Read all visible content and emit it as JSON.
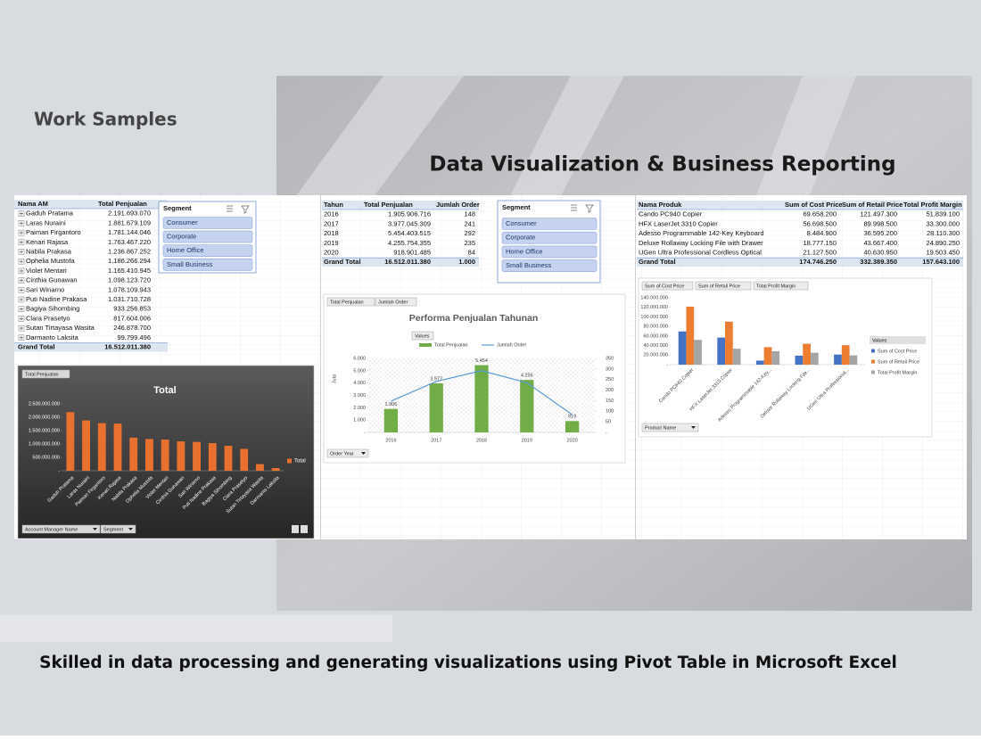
{
  "header": {
    "label": "Work Samples",
    "title": "Data Visualization & Business Reporting"
  },
  "caption": "Skilled in data processing and generating visualizations using Pivot Table in Microsoft Excel",
  "panels": [
    {
      "table": {
        "columns": [
          "Nama AM",
          "Total Penjualan"
        ],
        "rows": [
          [
            "Gaduh Pratama",
            "2.191.693.070"
          ],
          [
            "Laras Nuraini",
            "1.881.679.109"
          ],
          [
            "Paiman Firgantoro",
            "1.781.144.046"
          ],
          [
            "Kenari Rajasa",
            "1.763.467.220"
          ],
          [
            "Nabila Prakasa",
            "1.236.867.252"
          ],
          [
            "Ophelia Mustofa",
            "1.186.266.294"
          ],
          [
            "Violet Mentari",
            "1.165.410.945"
          ],
          [
            "Cinthia Gunawan",
            "1.098.123.720"
          ],
          [
            "Sari Winarno",
            "1.078.109.943"
          ],
          [
            "Puti Nadine Prakasa",
            "1.031.710.728"
          ],
          [
            "Bagiya Sihombing",
            "933.256.853"
          ],
          [
            "Clara Prasetyo",
            "817.604.006"
          ],
          [
            "Sutan Tirtayasa Wasita",
            "246.878.700"
          ],
          [
            "Darmanto Laksita",
            "99.799.496"
          ]
        ],
        "total": [
          "Grand Total",
          "16.512.011.380"
        ]
      },
      "slicer": {
        "title": "Segment",
        "items": [
          "Consumer",
          "Corporate",
          "Home Office",
          "Small Business"
        ]
      }
    },
    {
      "table": {
        "columns": [
          "Tahun",
          "Total Penjualan",
          "Jumlah Order"
        ],
        "rows": [
          [
            "2016",
            "1.905.906.716",
            "148"
          ],
          [
            "2017",
            "3.977.045.309",
            "241"
          ],
          [
            "2018",
            "5.454.403.515",
            "292"
          ],
          [
            "2019",
            "4.255.754.355",
            "235"
          ],
          [
            "2020",
            "918.901.485",
            "84"
          ]
        ],
        "total": [
          "Grand Total",
          "16.512.011.380",
          "1.000"
        ]
      },
      "slicer": {
        "title": "Segment",
        "items": [
          "Consumer",
          "Corporate",
          "Home Office",
          "Small Business"
        ]
      }
    },
    {
      "table": {
        "columns": [
          "Nama Produk",
          "Sum of Cost Price",
          "Sum of Retail Price",
          "Total Profit Margin"
        ],
        "rows": [
          [
            "Cando PC940 Copier",
            "69.658.200",
            "121.497.300",
            "51.839.100"
          ],
          [
            "HFX LaserJet 3310 Copier",
            "56.698.500",
            "89.998.500",
            "33.300.000"
          ],
          [
            "Adesso Programmable 142-Key Keyboard",
            "8.484.900",
            "36.595.200",
            "28.110.300"
          ],
          [
            "Deluxe Rollaway Locking File with Drawer",
            "18.777.150",
            "43.667.400",
            "24.890.250"
          ],
          [
            "UGen Ultra Professional Cordless Optical",
            "21.127.500",
            "40.630.950",
            "19.503.450"
          ]
        ],
        "total": [
          "Grand Total",
          "174.746.250",
          "332.389.350",
          "157.643.100"
        ]
      }
    }
  ],
  "chart_data": [
    {
      "type": "bar",
      "title": "Total",
      "field_buttons": [
        "Total Penjualan"
      ],
      "filter_buttons": [
        "Account Manager Name",
        "Segment"
      ],
      "categories": [
        "Gaduh Pratama",
        "Laras Nuraini",
        "Paiman Firgantoro",
        "Kenari Rajasa",
        "Nabila Prakasa",
        "Ophelia Mustofa",
        "Violet Mentari",
        "Cinthia Gunawan",
        "Sari Winarno",
        "Puti Nadine Prakasa",
        "Bagiya Sihombing",
        "Clara Prasetyo",
        "Sutan Tirtayasa Wasita",
        "Darmanto Laksita"
      ],
      "series": [
        {
          "name": "Total",
          "color": "#e8712f",
          "values": [
            2191693070,
            1881679109,
            1781144046,
            1763467220,
            1236867252,
            1186266294,
            1165410945,
            1098123720,
            1078109943,
            1031710728,
            933256853,
            817604006,
            246878700,
            99799496
          ]
        }
      ],
      "ylim": [
        0,
        2500000000
      ],
      "yticks": [
        {
          "value": 0,
          "label": "-"
        },
        {
          "value": 500000000,
          "label": "500.000.000"
        },
        {
          "value": 1000000000,
          "label": "1.000.000.000"
        },
        {
          "value": 1500000000,
          "label": "1.500.000.000"
        },
        {
          "value": 2000000000,
          "label": "2.000.000.000"
        },
        {
          "value": 2500000000,
          "label": "2.500.000.000"
        }
      ],
      "legend": "right"
    },
    {
      "type": "combo",
      "title": "Performa Penjualan Tahunan",
      "field_buttons": [
        "Total Penjualan",
        "Jumlah Order"
      ],
      "values_button": "Values",
      "filter_buttons": [
        "Order Year"
      ],
      "y_label": "Juta",
      "categories": [
        "2016",
        "2017",
        "2018",
        "2019",
        "2020"
      ],
      "series": [
        {
          "name": "Total Penjualan",
          "type": "bar",
          "color": "#70ad47",
          "values": [
            1906,
            3977,
            5454,
            4256,
            919
          ],
          "value_labels": [
            "1.906",
            "3.977",
            "5.454",
            "4.256",
            "919"
          ]
        },
        {
          "name": "Jumlah Order",
          "type": "line",
          "axis": "y2",
          "color": "#5b9bd5",
          "values": [
            148,
            241,
            292,
            235,
            84
          ]
        }
      ],
      "ylim": [
        0,
        6000
      ],
      "yticks": [
        {
          "value": 0,
          "label": "-"
        },
        {
          "value": 1000,
          "label": "1.000"
        },
        {
          "value": 2000,
          "label": "2.000"
        },
        {
          "value": 3000,
          "label": "3.000"
        },
        {
          "value": 4000,
          "label": "4.000"
        },
        {
          "value": 5000,
          "label": "5.000"
        },
        {
          "value": 6000,
          "label": "6.000"
        }
      ],
      "y2lim": [
        0,
        350
      ],
      "y2ticks": [
        {
          "value": 0,
          "label": "-"
        },
        50,
        100,
        150,
        200,
        250,
        300,
        350
      ],
      "legend": "top"
    },
    {
      "type": "bar",
      "field_buttons": [
        "Sum of Cost Price",
        "Sum of Retail Price",
        "Total Profit Margin"
      ],
      "filter_buttons": [
        "Product Name"
      ],
      "legend_title": "Values",
      "categories": [
        "Cando PC940 Copier",
        "HFX LaserJet 3310 Copier",
        "Adesso Programmable 142-Key...",
        "Deluxe Rollaway Locking File...",
        "UGen Ultra Professional..."
      ],
      "series": [
        {
          "name": "Sum of Cost Price",
          "color": "#4472c4",
          "values": [
            69658200,
            56698500,
            8484900,
            18777150,
            21127500
          ]
        },
        {
          "name": "Sum of Retail Price",
          "color": "#ed7d31",
          "values": [
            121497300,
            89998500,
            36595200,
            43667400,
            40630950
          ]
        },
        {
          "name": "Total Profit Margin",
          "color": "#a5a5a5",
          "values": [
            51839100,
            33300000,
            28110300,
            24890250,
            19503450
          ]
        }
      ],
      "ylim": [
        0,
        140000000
      ],
      "yticks": [
        {
          "value": 0,
          "label": "-"
        },
        {
          "value": 20000000,
          "label": "20.000.000"
        },
        {
          "value": 40000000,
          "label": "40.000.000"
        },
        {
          "value": 60000000,
          "label": "60.000.000"
        },
        {
          "value": 80000000,
          "label": "80.000.000"
        },
        {
          "value": 100000000,
          "label": "100.000.000"
        },
        {
          "value": 120000000,
          "label": "120.000.000"
        },
        {
          "value": 140000000,
          "label": "140.000.000"
        }
      ],
      "legend": "right"
    }
  ]
}
